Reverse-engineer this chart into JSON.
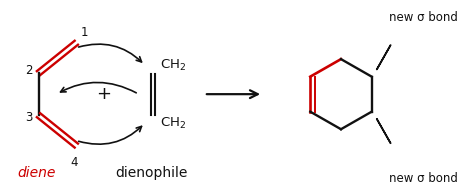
{
  "bg_color": "#ffffff",
  "red_color": "#cc0000",
  "black_color": "#111111",
  "diene_label": "diene",
  "dienophile_label": "dienophile",
  "new_sigma_bond": "new σ bond",
  "figsize": [
    4.74,
    1.93
  ],
  "dpi": 100
}
